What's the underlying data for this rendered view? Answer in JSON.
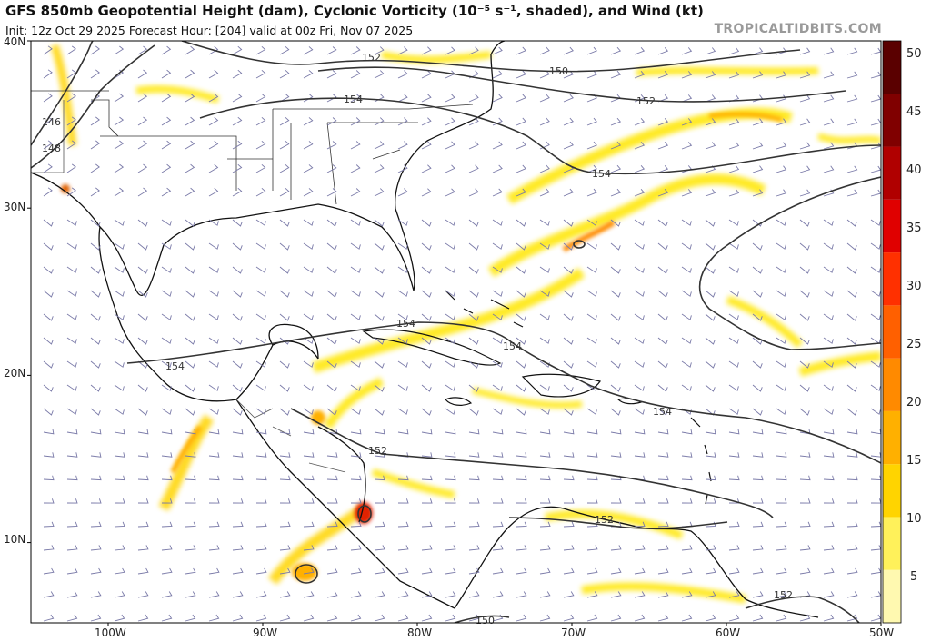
{
  "header": {
    "title": "GFS 850mb Geopotential Height (dam), Cyclonic Vorticity (10⁻⁵ s⁻¹, shaded), and Wind (kt)",
    "subtitle": "Init: 12z Oct 29 2025   Forecast Hour: [204]   valid at 00z Fri, Nov 07 2025",
    "brand": "TROPICALTIDBITS.COM"
  },
  "axes": {
    "lat_labels": [
      "40N",
      "30N",
      "20N",
      "10N"
    ],
    "lon_labels": [
      "100W",
      "90W",
      "80W",
      "70W",
      "60W",
      "50W"
    ],
    "lat_values": [
      40,
      30,
      20,
      10
    ],
    "lon_values": [
      -100,
      -90,
      -80,
      -70,
      -60,
      -50
    ],
    "lon_range": [
      -105,
      -50
    ],
    "lat_range": [
      5.2,
      40
    ]
  },
  "colorbar": {
    "ticks": [
      "50",
      "45",
      "40",
      "35",
      "30",
      "25",
      "20",
      "15",
      "10",
      "5"
    ],
    "tick_values": [
      50,
      45,
      40,
      35,
      30,
      25,
      20,
      15,
      10,
      5
    ],
    "range": [
      2,
      52
    ],
    "colors": [
      "#fff9b0",
      "#fff15a",
      "#ffd400",
      "#ffb000",
      "#ff8a00",
      "#ff6000",
      "#ff3000",
      "#e00000",
      "#b00000",
      "#800000",
      "#5a0000"
    ]
  },
  "contours": [
    {
      "label": "146"
    },
    {
      "label": "148"
    },
    {
      "label": "150"
    },
    {
      "label": "150"
    },
    {
      "label": "152"
    },
    {
      "label": "152"
    },
    {
      "label": "152"
    },
    {
      "label": "152"
    },
    {
      "label": "152"
    },
    {
      "label": "154"
    },
    {
      "label": "154"
    },
    {
      "label": "154"
    },
    {
      "label": "154"
    },
    {
      "label": "154"
    },
    {
      "label": "154"
    }
  ],
  "colors": {
    "contour": "#333333",
    "coast": "#111111",
    "border": "#333333",
    "wind_barb": "#7a7aa8",
    "frame": "#000000"
  }
}
